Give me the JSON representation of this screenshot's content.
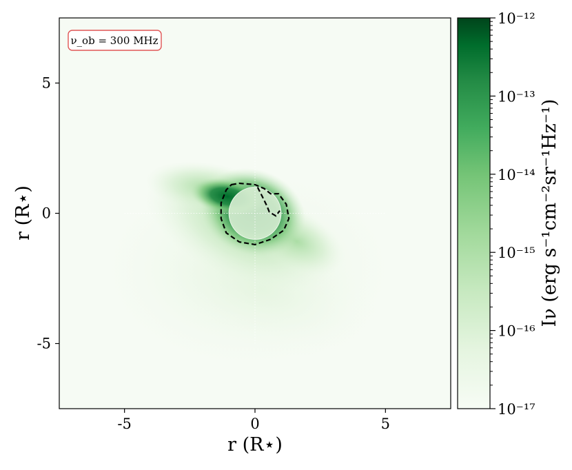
{
  "chart_data": {
    "type": "heatmap",
    "title": "",
    "xlabel": "r (R⋆)",
    "ylabel": "r (R⋆)",
    "xlim": [
      -7.5,
      7.5
    ],
    "ylim": [
      -7.5,
      7.5
    ],
    "x_ticks": [
      -5,
      0,
      5
    ],
    "x_tick_labels": [
      "-5",
      "0",
      "5"
    ],
    "y_ticks": [
      -5,
      0,
      5
    ],
    "y_tick_labels": [
      "-5",
      "0",
      "5"
    ],
    "grid": "dotted crosshair at x=0 and y=0",
    "colormap": "Greens",
    "colorbar": {
      "label": "Iν (erg s⁻¹cm⁻²sr⁻¹Hz⁻¹)",
      "scale": "log",
      "range": [
        1e-17,
        1e-12
      ],
      "major_ticks": [
        -17,
        -16,
        -15,
        -14,
        -13,
        -12
      ],
      "tick_labels": [
        "10⁻¹⁷",
        "10⁻¹⁶",
        "10⁻¹⁵",
        "10⁻¹⁴",
        "10⁻¹³",
        "10⁻¹²"
      ]
    },
    "annotation": "ν_ob = 300 MHz",
    "stellar_disk": {
      "center": [
        0,
        0
      ],
      "radius": 1.0
    },
    "contour": [
      [
        -0.9,
        1.1
      ],
      [
        -0.6,
        1.15
      ],
      [
        0.0,
        1.1
      ],
      [
        0.35,
        0.95
      ],
      [
        0.6,
        0.75
      ],
      [
        0.9,
        0.75
      ],
      [
        1.2,
        0.35
      ],
      [
        1.3,
        -0.2
      ],
      [
        1.1,
        -0.65
      ],
      [
        0.6,
        -1.0
      ],
      [
        0.0,
        -1.2
      ],
      [
        -0.6,
        -1.1
      ],
      [
        -1.1,
        -0.75
      ],
      [
        -1.3,
        -0.2
      ],
      [
        -1.3,
        0.4
      ],
      [
        -1.1,
        0.9
      ],
      [
        -0.9,
        1.1
      ]
    ],
    "contour_inner": [
      [
        0.1,
        1.0
      ],
      [
        0.3,
        0.6
      ],
      [
        0.45,
        0.3
      ],
      [
        0.55,
        0.05
      ],
      [
        0.8,
        -0.1
      ],
      [
        0.95,
        0.1
      ]
    ],
    "colors": {
      "background": "#f6fbf4",
      "peak": "#00441b",
      "annotation_border": "#e05555",
      "disk": "#d9eed4"
    }
  }
}
